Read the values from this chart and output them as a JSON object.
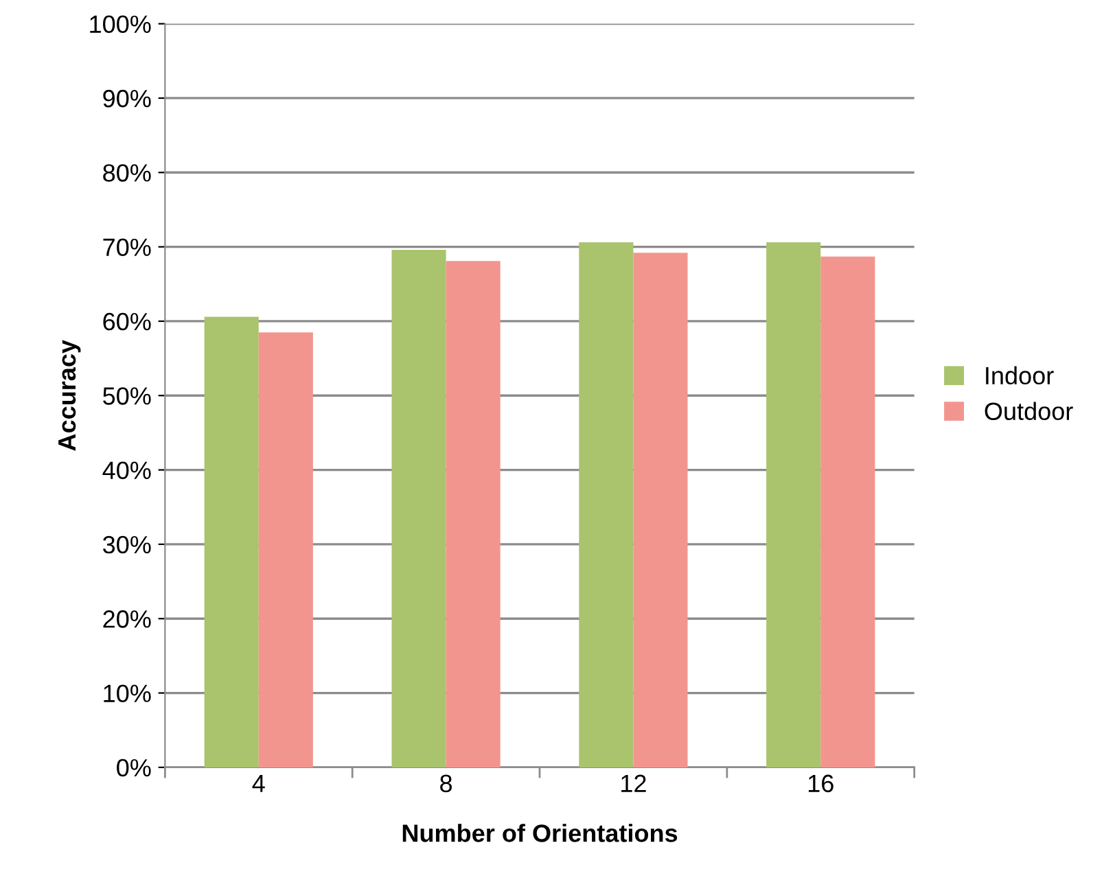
{
  "chart_data": {
    "type": "bar",
    "xlabel": "Number of Orientations",
    "ylabel": "Accuracy",
    "categories": [
      "4",
      "8",
      "12",
      "16"
    ],
    "series": [
      {
        "name": "Indoor",
        "color": "#a9c46c",
        "values": [
          60.6,
          69.6,
          70.6,
          70.6
        ]
      },
      {
        "name": "Outdoor",
        "color": "#f3958f",
        "values": [
          58.5,
          68.1,
          69.2,
          68.7
        ]
      }
    ],
    "ylim": [
      0,
      100
    ],
    "yticks": [
      {
        "value": 0,
        "label": "0%"
      },
      {
        "value": 10,
        "label": "10%"
      },
      {
        "value": 20,
        "label": "20%"
      },
      {
        "value": 30,
        "label": "30%"
      },
      {
        "value": 40,
        "label": "40%"
      },
      {
        "value": 50,
        "label": "50%"
      },
      {
        "value": 60,
        "label": "60%"
      },
      {
        "value": 70,
        "label": "70%"
      },
      {
        "value": 80,
        "label": "80%"
      },
      {
        "value": 90,
        "label": "90%"
      },
      {
        "value": 100,
        "label": "100%"
      }
    ],
    "grid": "y",
    "legend": "right"
  }
}
